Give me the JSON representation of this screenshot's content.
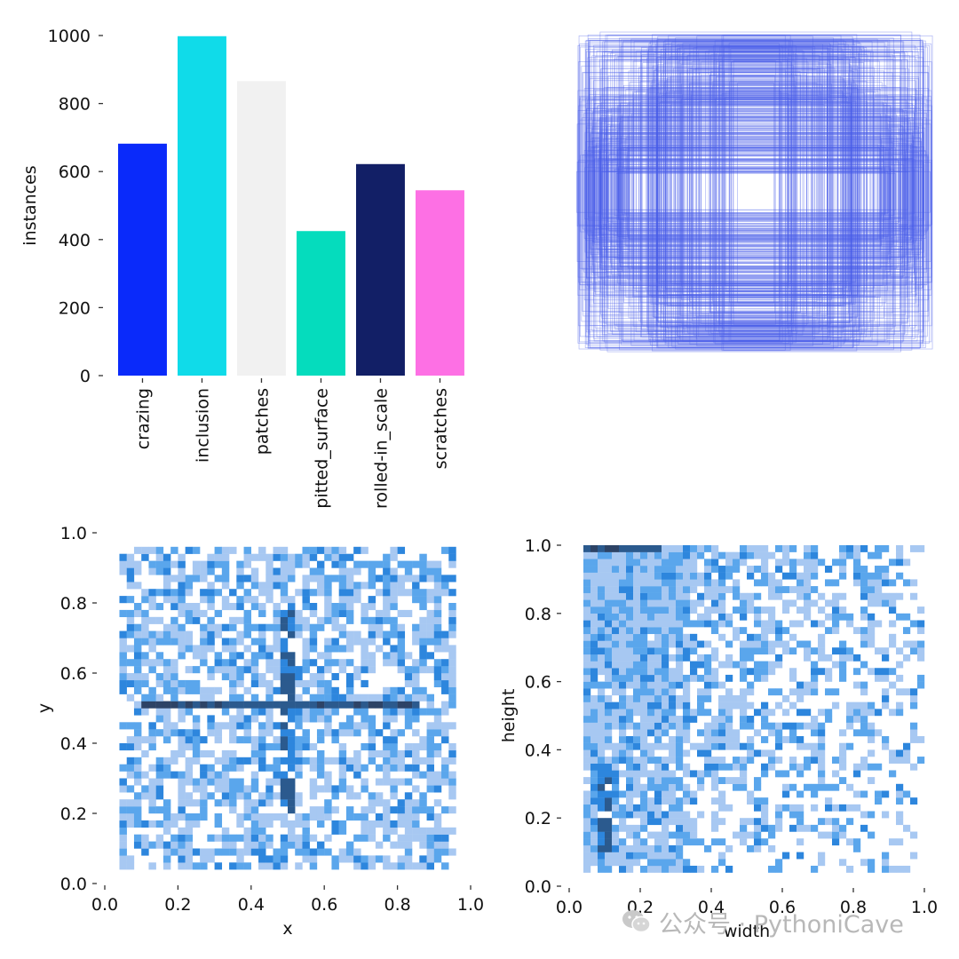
{
  "chart_data": [
    {
      "type": "bar",
      "categories": [
        "crazing",
        "inclusion",
        "patches",
        "pitted_surface",
        "rolled-in_scale",
        "scratches"
      ],
      "values": [
        682,
        998,
        866,
        425,
        622,
        545
      ],
      "colors": [
        "#0a2afa",
        "#10dbe9",
        "#f1f1f1",
        "#05dcbd",
        "#121f66",
        "#fd70e4"
      ],
      "ylabel": "instances",
      "ylim": [
        0,
        1000
      ],
      "yticks": [
        "0",
        "200",
        "400",
        "600",
        "800",
        "1000"
      ]
    },
    {
      "type": "scatter",
      "description_kind": "overlaid bounding boxes centered on image",
      "box_color": "#4a5ee8",
      "box_count_visible": "many",
      "axes": "hidden"
    },
    {
      "type": "heatmap",
      "xlabel": "x",
      "ylabel": "y",
      "xlim": [
        0.0,
        1.0
      ],
      "ylim": [
        0.0,
        1.0
      ],
      "xticks": [
        "0.0",
        "0.2",
        "0.4",
        "0.6",
        "0.8",
        "1.0"
      ],
      "yticks": [
        "0.0",
        "0.2",
        "0.4",
        "0.6",
        "0.8",
        "1.0"
      ],
      "bins": 50,
      "data_extent": {
        "x": [
          0.04,
          0.96
        ],
        "y": [
          0.04,
          0.96
        ]
      },
      "hot_lines": [
        {
          "axis": "y",
          "value": 0.51,
          "from": 0.1,
          "to": 0.86
        },
        {
          "axis": "x",
          "value": 0.5,
          "from": 0.2,
          "to": 0.8
        }
      ],
      "colors": [
        "#a7c8f2",
        "#5aa6ec",
        "#2d86dd",
        "#2b5a8e",
        "#2d4366"
      ]
    },
    {
      "type": "heatmap",
      "xlabel": "width",
      "ylabel": "height",
      "xlim": [
        0.0,
        1.0
      ],
      "ylim": [
        0.0,
        1.0
      ],
      "xticks": [
        "0.0",
        "0.2",
        "0.4",
        "0.6",
        "0.8",
        "1.0"
      ],
      "yticks": [
        "0.0",
        "0.2",
        "0.4",
        "0.6",
        "0.8",
        "1.0"
      ],
      "bins": 50,
      "data_extent": {
        "x": [
          0.05,
          1.0
        ],
        "y": [
          0.05,
          1.0
        ]
      },
      "hot_lines": [
        {
          "axis": "y",
          "value": 0.99,
          "from": 0.05,
          "to": 0.25
        },
        {
          "axis": "x",
          "value": 0.1,
          "from": 0.1,
          "to": 0.35
        }
      ],
      "colors": [
        "#a7c8f2",
        "#5aa6ec",
        "#2d86dd",
        "#2b5a8e",
        "#2d4366"
      ]
    }
  ],
  "watermark": {
    "text": "公众号 · PythoniCave",
    "icon": "wechat-icon"
  }
}
